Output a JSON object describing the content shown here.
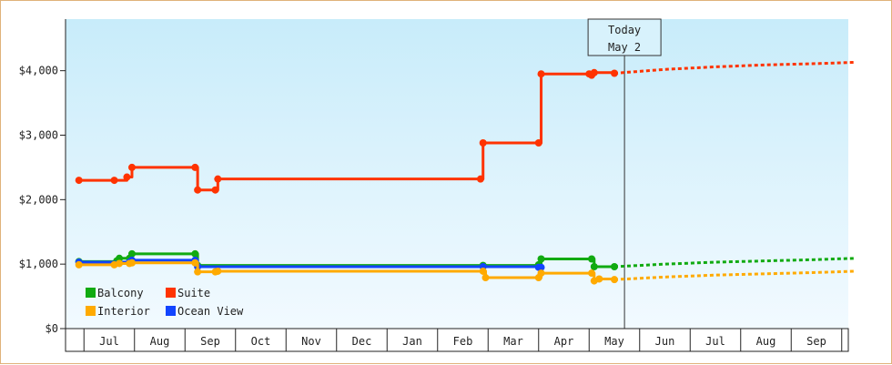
{
  "chart_data": {
    "type": "line",
    "title": "",
    "xlabel": "",
    "ylabel": "",
    "ylim": [
      0,
      4800
    ],
    "grid": false,
    "legend_position": "bottom-left",
    "x_categories": [
      "Jul",
      "Aug",
      "Sep",
      "Oct",
      "Nov",
      "Dec",
      "Jan",
      "Feb",
      "Mar",
      "Apr",
      "May",
      "Jun",
      "Jul",
      "Aug",
      "Sep"
    ],
    "y_ticks": [
      {
        "value": 0,
        "label": "$0"
      },
      {
        "value": 1000,
        "label": "$1,000"
      },
      {
        "value": 2000,
        "label": "$2,000"
      },
      {
        "value": 3000,
        "label": "$3,000"
      },
      {
        "value": 4000,
        "label": "$4,000"
      }
    ],
    "today_marker": {
      "line1": "Today",
      "line2": "May 2",
      "x": 10.2
    },
    "series": [
      {
        "name": "Suite",
        "color": "#ff3300",
        "style": "step",
        "points": [
          [
            -0.6,
            2300
          ],
          [
            0.1,
            2300
          ],
          [
            0.35,
            2350
          ],
          [
            0.45,
            2500
          ],
          [
            1.7,
            2500
          ],
          [
            1.75,
            2150
          ],
          [
            2.1,
            2150
          ],
          [
            2.15,
            2320
          ],
          [
            7.35,
            2320
          ],
          [
            7.4,
            2880
          ],
          [
            8.5,
            2880
          ],
          [
            8.55,
            3950
          ],
          [
            9.5,
            3950
          ],
          [
            9.55,
            3930
          ],
          [
            9.6,
            3970
          ],
          [
            10.0,
            3960
          ]
        ],
        "forecast": [
          [
            10.0,
            3960
          ],
          [
            11.0,
            4020
          ],
          [
            12.0,
            4060
          ],
          [
            13.0,
            4090
          ],
          [
            14.0,
            4110
          ],
          [
            14.75,
            4130
          ]
        ]
      },
      {
        "name": "Balcony",
        "color": "#11aa11",
        "style": "step",
        "points": [
          [
            -0.6,
            1040
          ],
          [
            0.15,
            1050
          ],
          [
            0.2,
            1090
          ],
          [
            0.4,
            1090
          ],
          [
            0.45,
            1160
          ],
          [
            1.7,
            1160
          ],
          [
            1.75,
            980
          ],
          [
            7.4,
            980
          ],
          [
            8.5,
            990
          ],
          [
            8.55,
            1080
          ],
          [
            9.55,
            1080
          ],
          [
            9.6,
            960
          ],
          [
            10.0,
            960
          ]
        ],
        "forecast": [
          [
            10.0,
            960
          ],
          [
            11.0,
            1000
          ],
          [
            12.0,
            1030
          ],
          [
            13.0,
            1050
          ],
          [
            14.0,
            1070
          ],
          [
            14.75,
            1090
          ]
        ]
      },
      {
        "name": "Ocean View",
        "color": "#1144ff",
        "style": "step",
        "points": [
          [
            -0.6,
            1030
          ],
          [
            0.4,
            1030
          ],
          [
            0.45,
            1060
          ],
          [
            1.7,
            1060
          ],
          [
            1.75,
            960
          ],
          [
            7.4,
            960
          ],
          [
            8.5,
            950
          ],
          [
            8.55,
            950
          ]
        ],
        "forecast": []
      },
      {
        "name": "Interior",
        "color": "#ffaa00",
        "style": "step",
        "points": [
          [
            -0.6,
            990
          ],
          [
            0.1,
            990
          ],
          [
            0.2,
            1010
          ],
          [
            0.4,
            1010
          ],
          [
            0.45,
            1020
          ],
          [
            1.7,
            1020
          ],
          [
            1.75,
            880
          ],
          [
            2.1,
            880
          ],
          [
            2.15,
            890
          ],
          [
            7.4,
            890
          ],
          [
            7.45,
            790
          ],
          [
            8.5,
            790
          ],
          [
            8.55,
            860
          ],
          [
            9.55,
            860
          ],
          [
            9.6,
            740
          ],
          [
            9.7,
            770
          ],
          [
            10.0,
            760
          ]
        ],
        "forecast": [
          [
            10.0,
            760
          ],
          [
            11.0,
            800
          ],
          [
            12.0,
            830
          ],
          [
            13.0,
            850
          ],
          [
            14.0,
            870
          ],
          [
            14.75,
            890
          ]
        ]
      }
    ],
    "legend": [
      {
        "label": "Balcony",
        "color": "#11aa11"
      },
      {
        "label": "Suite",
        "color": "#ff3300"
      },
      {
        "label": "Interior",
        "color": "#ffaa00"
      },
      {
        "label": "Ocean View",
        "color": "#1144ff"
      }
    ]
  }
}
